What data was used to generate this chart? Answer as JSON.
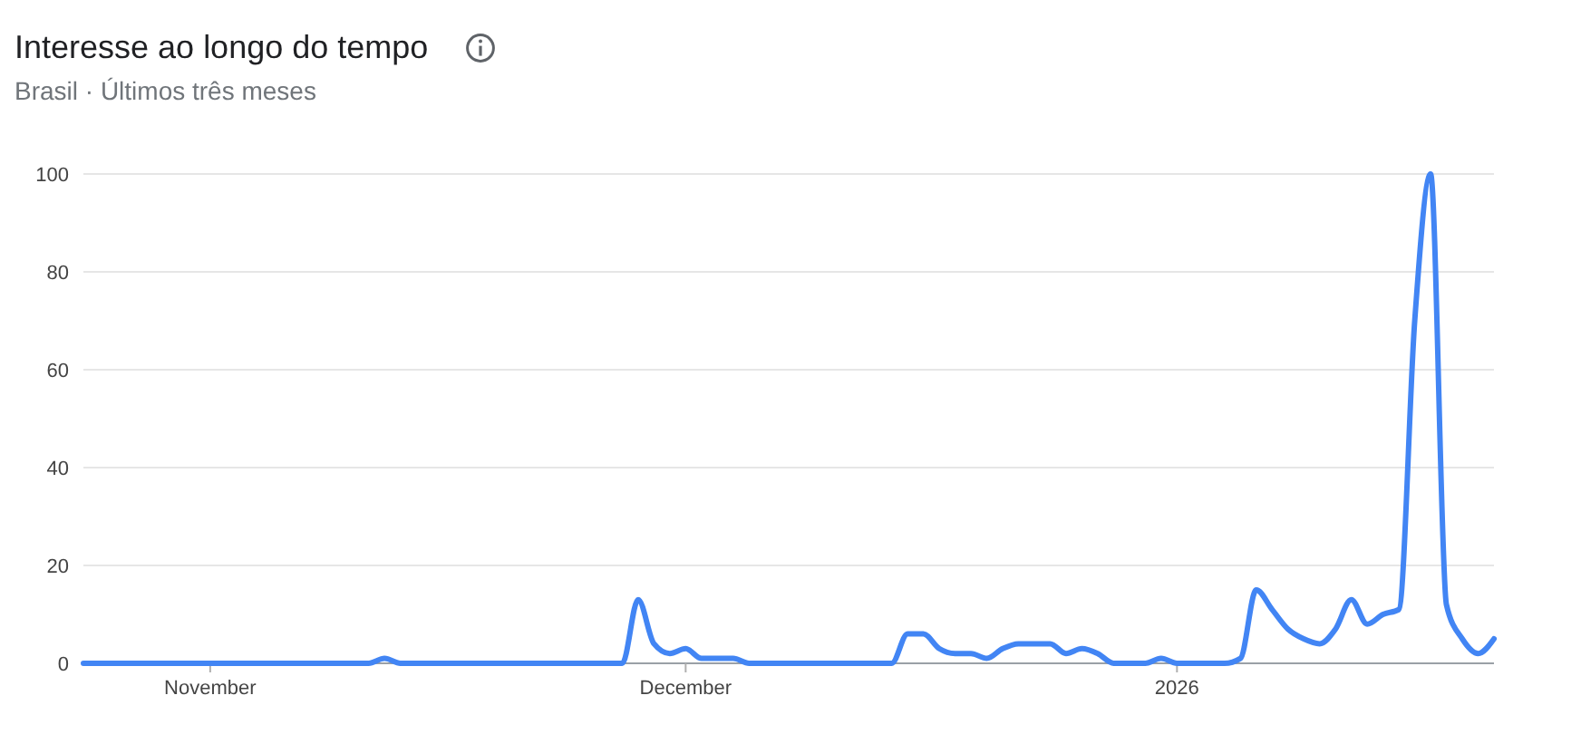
{
  "chart_data": {
    "type": "line",
    "title": "Interesse ao longo do tempo",
    "subtitle": "Brasil · Últimos três meses",
    "x": [
      "2025-10-24",
      "2025-10-25",
      "2025-10-26",
      "2025-10-27",
      "2025-10-28",
      "2025-10-29",
      "2025-10-30",
      "2025-10-31",
      "2025-11-01",
      "2025-11-02",
      "2025-11-03",
      "2025-11-04",
      "2025-11-05",
      "2025-11-06",
      "2025-11-07",
      "2025-11-08",
      "2025-11-09",
      "2025-11-10",
      "2025-11-11",
      "2025-11-12",
      "2025-11-13",
      "2025-11-14",
      "2025-11-15",
      "2025-11-16",
      "2025-11-17",
      "2025-11-18",
      "2025-11-19",
      "2025-11-20",
      "2025-11-21",
      "2025-11-22",
      "2025-11-23",
      "2025-11-24",
      "2025-11-25",
      "2025-11-26",
      "2025-11-27",
      "2025-11-28",
      "2025-11-29",
      "2025-11-30",
      "2025-12-01",
      "2025-12-02",
      "2025-12-03",
      "2025-12-04",
      "2025-12-05",
      "2025-12-06",
      "2025-12-07",
      "2025-12-08",
      "2025-12-09",
      "2025-12-10",
      "2025-12-11",
      "2025-12-12",
      "2025-12-13",
      "2025-12-14",
      "2025-12-15",
      "2025-12-16",
      "2025-12-17",
      "2025-12-18",
      "2025-12-19",
      "2025-12-20",
      "2025-12-21",
      "2025-12-22",
      "2025-12-23",
      "2025-12-24",
      "2025-12-25",
      "2025-12-26",
      "2025-12-27",
      "2025-12-28",
      "2025-12-29",
      "2025-12-30",
      "2025-12-31",
      "2026-01-01",
      "2026-01-02",
      "2026-01-03",
      "2026-01-04",
      "2026-01-05",
      "2026-01-06",
      "2026-01-07",
      "2026-01-08",
      "2026-01-09",
      "2026-01-10",
      "2026-01-11",
      "2026-01-12",
      "2026-01-13",
      "2026-01-14",
      "2026-01-15",
      "2026-01-16",
      "2026-01-17",
      "2026-01-18",
      "2026-01-19",
      "2026-01-20",
      "2026-01-21"
    ],
    "values": [
      0,
      0,
      0,
      0,
      0,
      0,
      0,
      0,
      0,
      0,
      0,
      0,
      0,
      0,
      0,
      0,
      0,
      0,
      0,
      1,
      0,
      0,
      0,
      0,
      0,
      0,
      0,
      0,
      0,
      0,
      0,
      0,
      0,
      0,
      0,
      13,
      4,
      2,
      3,
      1,
      1,
      1,
      0,
      0,
      0,
      0,
      0,
      0,
      0,
      0,
      0,
      0,
      6,
      6,
      3,
      2,
      2,
      1,
      3,
      4,
      4,
      4,
      2,
      3,
      2,
      0,
      0,
      0,
      1,
      0,
      0,
      0,
      0,
      1,
      15,
      11,
      7,
      5,
      4,
      7,
      13,
      8,
      10,
      11,
      70,
      100,
      12,
      5,
      2,
      5
    ],
    "color": "#4285f4",
    "xlim": [
      "2025-10-24",
      "2026-01-21"
    ],
    "xticks": [
      {
        "value": "2025-11-01",
        "label": "November"
      },
      {
        "value": "2025-12-01",
        "label": "December"
      },
      {
        "value": "2026-01-01",
        "label": "2026"
      }
    ],
    "ylim": [
      0,
      100
    ],
    "yticks": [
      0,
      20,
      40,
      60,
      80,
      100
    ],
    "grid": "y"
  }
}
